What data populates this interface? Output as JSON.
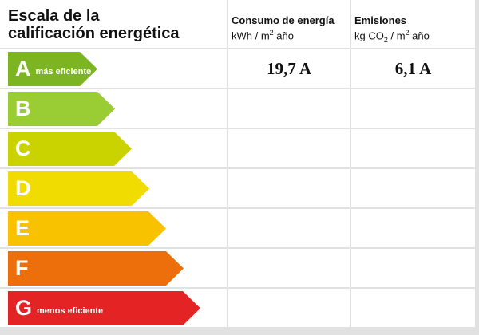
{
  "title": {
    "line1": "Escala de la",
    "line2": "calificación energética"
  },
  "columns": {
    "energy": {
      "line1": "Consumo de energía",
      "unit_prefix": "kWh / m",
      "unit_sup": "2",
      "unit_suffix": " año"
    },
    "emissions": {
      "line1": "Emisiones",
      "unit_prefix": "kg CO",
      "unit_sub": "2",
      "unit_mid": " / m",
      "unit_sup": "2",
      "unit_suffix": " año"
    }
  },
  "ratings": [
    {
      "letter": "A",
      "label": "más eficiente",
      "color": "#7cb521",
      "energy": "19,7 A",
      "emissions": "6,1 A"
    },
    {
      "letter": "B",
      "label": "",
      "color": "#9acd33",
      "energy": "",
      "emissions": ""
    },
    {
      "letter": "C",
      "label": "",
      "color": "#cad200",
      "energy": "",
      "emissions": ""
    },
    {
      "letter": "D",
      "label": "",
      "color": "#f0dc00",
      "energy": "",
      "emissions": ""
    },
    {
      "letter": "E",
      "label": "",
      "color": "#f8c200",
      "energy": "",
      "emissions": ""
    },
    {
      "letter": "F",
      "label": "",
      "color": "#ec6f0c",
      "energy": "",
      "emissions": ""
    },
    {
      "letter": "G",
      "label": "menos eficiente",
      "color": "#e42424",
      "energy": "",
      "emissions": ""
    }
  ]
}
